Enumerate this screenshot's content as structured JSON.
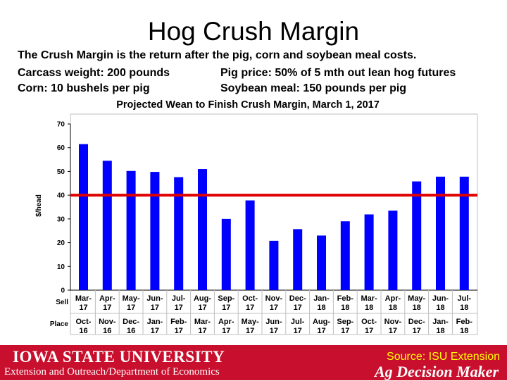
{
  "slide": {
    "title": "Hog Crush Margin",
    "line1": "The Crush Margin is the return after the pig, corn and soybean meal costs.",
    "line2_left": "Carcass weight:  200 pounds",
    "line2_right": "Pig price:  50% of 5 mth out lean hog futures",
    "line3_left": "Corn:  10 bushels per pig",
    "line3_right": "Soybean meal:  150 pounds per pig"
  },
  "chart_data": {
    "type": "bar",
    "title": "Projected Wean to Finish Crush Margin, March 1, 2017",
    "ylabel": "$/head",
    "ylim": [
      0,
      70
    ],
    "yticks": [
      0,
      10,
      20,
      30,
      40,
      50,
      60,
      70
    ],
    "row_labels": {
      "sell": "Sell",
      "place": "Place"
    },
    "sell": [
      [
        "Mar-",
        "17"
      ],
      [
        "Apr-",
        "17"
      ],
      [
        "May-",
        "17"
      ],
      [
        "Jun-",
        "17"
      ],
      [
        "Jul-",
        "17"
      ],
      [
        "Aug-",
        "17"
      ],
      [
        "Sep-",
        "17"
      ],
      [
        "Oct-",
        "17"
      ],
      [
        "Nov-",
        "17"
      ],
      [
        "Dec-",
        "17"
      ],
      [
        "Jan-",
        "18"
      ],
      [
        "Feb-",
        "18"
      ],
      [
        "Mar-",
        "18"
      ],
      [
        "Apr-",
        "18"
      ],
      [
        "May-",
        "18"
      ],
      [
        "Jun-",
        "18"
      ],
      [
        "Jul-",
        "18"
      ]
    ],
    "place": [
      [
        "Oct-",
        "16"
      ],
      [
        "Nov-",
        "16"
      ],
      [
        "Dec-",
        "16"
      ],
      [
        "Jan-",
        "17"
      ],
      [
        "Feb-",
        "17"
      ],
      [
        "Mar-",
        "17"
      ],
      [
        "Apr-",
        "17"
      ],
      [
        "May-",
        "17"
      ],
      [
        "Jun-",
        "17"
      ],
      [
        "Jul-",
        "17"
      ],
      [
        "Aug-",
        "17"
      ],
      [
        "Sep-",
        "17"
      ],
      [
        "Oct-",
        "17"
      ],
      [
        "Nov-",
        "17"
      ],
      [
        "Dec-",
        "17"
      ],
      [
        "Jan-",
        "18"
      ],
      [
        "Feb-",
        "18"
      ]
    ],
    "values": [
      61.5,
      54.5,
      50.2,
      49.8,
      47.6,
      51.0,
      30.0,
      37.8,
      20.8,
      25.7,
      23.0,
      29.0,
      31.9,
      33.5,
      45.8,
      47.8,
      47.8
    ],
    "reference_line": 40,
    "bar_color": "#0000ff",
    "reference_color": "#e00000",
    "grid": false
  },
  "footer": {
    "logo": "IOWA STATE UNIVERSITY",
    "dept": "Extension and Outreach/Department of Economics",
    "source": "Source: ISU Extension",
    "brand": "Ag Decision Maker"
  }
}
